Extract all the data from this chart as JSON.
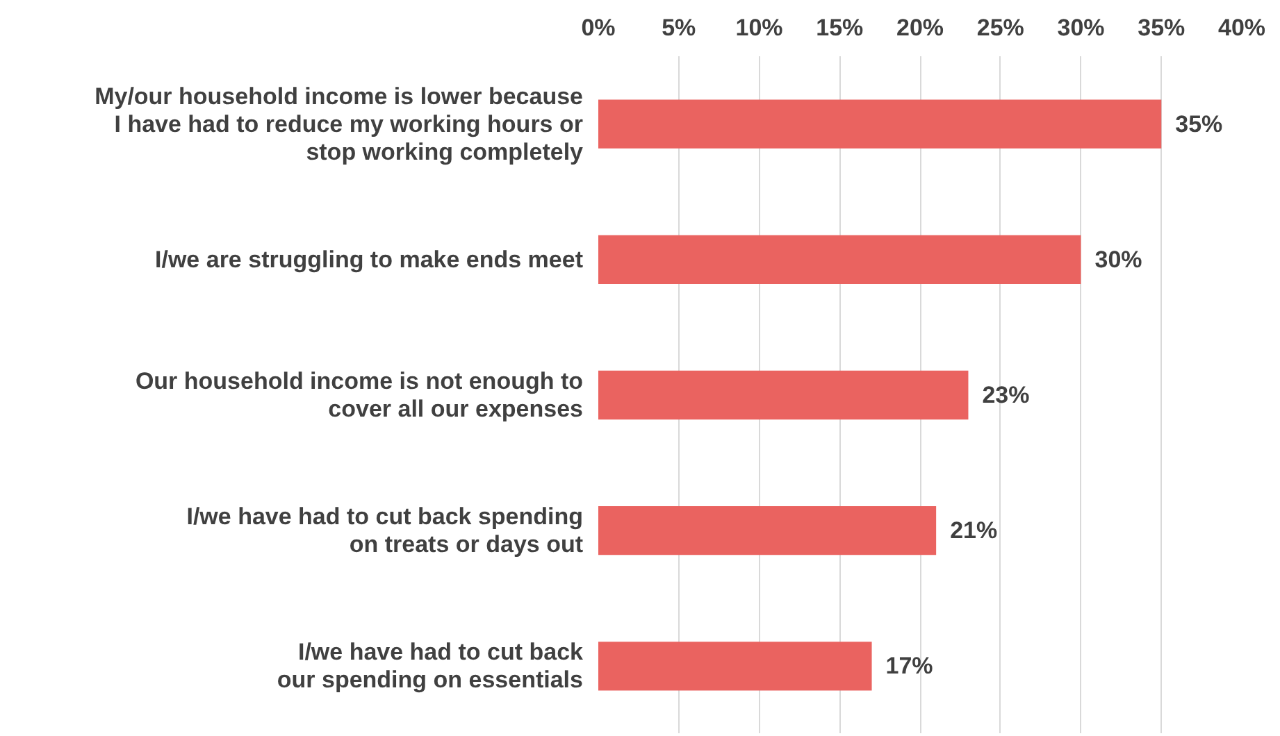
{
  "chart_data": {
    "type": "bar",
    "orientation": "horizontal",
    "categories": [
      "My/our household income is lower because\nI have had to reduce my working hours or\nstop working completely",
      "I/we are struggling to make ends meet",
      "Our household income is not enough to\ncover all our expenses",
      "I/we have had to cut back spending\non treats or days out",
      "I/we have had to cut back\nour spending on essentials"
    ],
    "values": [
      35,
      30,
      23,
      21,
      17
    ],
    "value_labels": [
      "35%",
      "30%",
      "23%",
      "21%",
      "17%"
    ],
    "color": "#ea6360",
    "xlim": [
      0,
      40
    ],
    "xticks": [
      {
        "value": 0,
        "label": "0%"
      },
      {
        "value": 5,
        "label": "5%"
      },
      {
        "value": 10,
        "label": "10%"
      },
      {
        "value": 15,
        "label": "15%"
      },
      {
        "value": 20,
        "label": "20%"
      },
      {
        "value": 25,
        "label": "25%"
      },
      {
        "value": 30,
        "label": "30%"
      },
      {
        "value": 35,
        "label": "35%"
      },
      {
        "value": 40,
        "label": "40%"
      }
    ],
    "grid": "x"
  }
}
